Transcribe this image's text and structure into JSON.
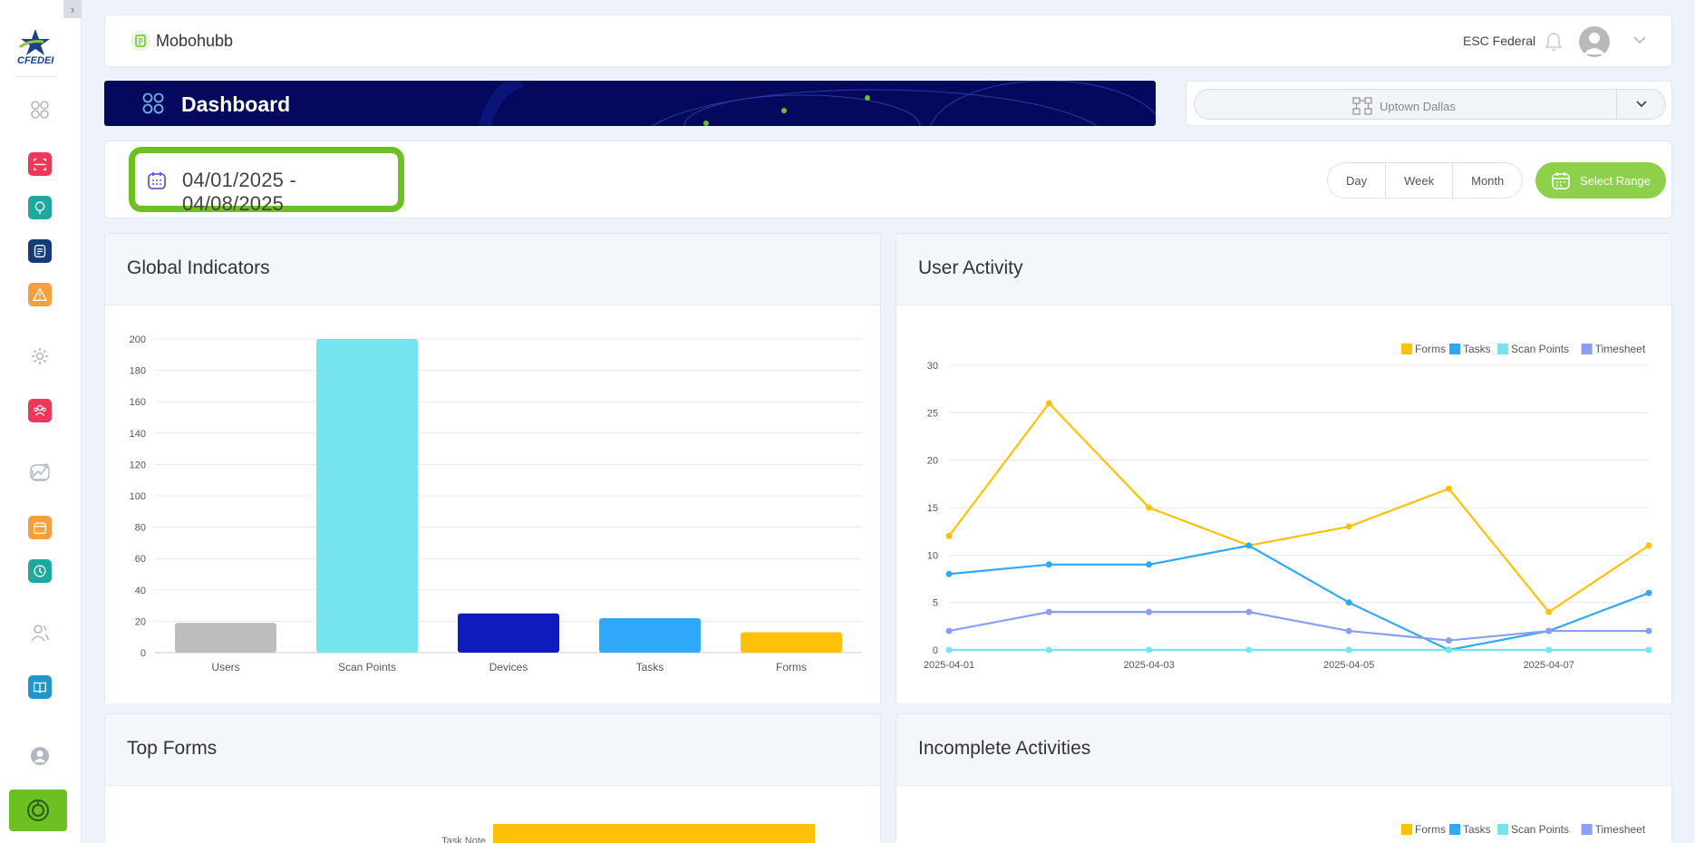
{
  "sidebar": {
    "collapse_glyph": "›",
    "logo_text": "CFEDEI",
    "items": [
      {
        "name": "dashboard-icon",
        "bg": "#ffffff",
        "color": "#b0b8c4"
      },
      {
        "name": "scan-icon",
        "bg": "#f0375a",
        "color": "#ffffff"
      },
      {
        "name": "location-pin-icon",
        "bg": "#1fa8a0",
        "color": "#ffffff"
      },
      {
        "name": "forms-icon",
        "bg": "#143c7a",
        "color": "#ffffff"
      },
      {
        "name": "alert-icon",
        "bg": "#f5a03c",
        "color": "#ffffff"
      },
      {
        "name": "gear-icon",
        "bg": "#ffffff",
        "color": "#b0b8c4"
      },
      {
        "name": "team-icon",
        "bg": "#f0375a",
        "color": "#ffffff"
      },
      {
        "name": "analytics-icon",
        "bg": "#ffffff",
        "color": "#b0b8c4"
      },
      {
        "name": "calendar-icon",
        "bg": "#f5a03c",
        "color": "#ffffff"
      },
      {
        "name": "clock-icon",
        "bg": "#1fa8a0",
        "color": "#ffffff"
      },
      {
        "name": "users-icon",
        "bg": "#ffffff",
        "color": "#b0b8c4"
      },
      {
        "name": "book-icon",
        "bg": "#2196c8",
        "color": "#ffffff"
      },
      {
        "name": "profile-icon",
        "bg": "#ffffff",
        "color": "#b0b8c4"
      }
    ],
    "bottom_icon": "support-icon"
  },
  "header": {
    "app_name": "Mobohubb",
    "org_name": "ESC Federal",
    "bell_icon": "bell-icon",
    "avatar_icon": "avatar-icon",
    "dropdown_icon": "chevron-down-icon"
  },
  "banner": {
    "title": "Dashboard",
    "icon": "dashboard-grid-icon"
  },
  "location": {
    "selected": "Uptown Dallas",
    "icon": "sitemap-icon"
  },
  "date_range": {
    "value": "04/01/2025 - 04/08/2025",
    "icon": "calendar-icon",
    "buttons": [
      "Day",
      "Week",
      "Month"
    ],
    "select_range_label": "Select Range"
  },
  "cards": {
    "global_indicators": "Global Indicators",
    "user_activity": "User Activity",
    "top_forms": "Top Forms",
    "incomplete_activities": "Incomplete Activities"
  },
  "top_forms_visible": {
    "bar_label": "Task Note",
    "bar_color": "#ffc107"
  },
  "chart_data": [
    {
      "type": "bar",
      "title": "Global Indicators",
      "categories": [
        "Users",
        "Scan Points",
        "Devices",
        "Tasks",
        "Forms"
      ],
      "values": [
        19,
        200,
        25,
        22,
        13
      ],
      "colors": [
        "#bdbdbd",
        "#76e4ec",
        "#0f1bbd",
        "#2fa8fa",
        "#ffc107"
      ],
      "ylim": [
        0,
        200
      ],
      "yticks": [
        0,
        20,
        40,
        60,
        80,
        100,
        120,
        140,
        160,
        180,
        200
      ],
      "grid": true
    },
    {
      "type": "line",
      "title": "User Activity",
      "x": [
        "2025-04-01",
        "2025-04-02",
        "2025-04-03",
        "2025-04-04",
        "2025-04-05",
        "2025-04-06",
        "2025-04-07",
        "2025-04-08"
      ],
      "xticks": [
        "2025-04-01",
        "2025-04-03",
        "2025-04-05",
        "2025-04-07"
      ],
      "ylim": [
        0,
        30
      ],
      "yticks": [
        0,
        5,
        10,
        15,
        20,
        25,
        30
      ],
      "legend_position": "top-right",
      "grid": true,
      "series": [
        {
          "name": "Forms",
          "color": "#ffc107",
          "values": [
            12,
            26,
            15,
            11,
            13,
            17,
            4,
            11
          ]
        },
        {
          "name": "Tasks",
          "color": "#2fa8fa",
          "values": [
            8,
            9,
            9,
            11,
            5,
            0,
            2,
            6
          ]
        },
        {
          "name": "Scan Points",
          "color": "#76e4ec",
          "values": [
            0,
            0,
            0,
            0,
            0,
            0,
            0,
            0
          ]
        },
        {
          "name": "Timesheet",
          "color": "#8b9df7",
          "values": [
            2,
            4,
            4,
            4,
            2,
            1,
            2,
            2
          ]
        }
      ]
    },
    {
      "type": "legend",
      "title": "Incomplete Activities",
      "series": [
        {
          "name": "Forms",
          "color": "#ffc107"
        },
        {
          "name": "Tasks",
          "color": "#2fa8fa"
        },
        {
          "name": "Scan Points",
          "color": "#76e4ec"
        },
        {
          "name": "Timesheet",
          "color": "#8b9df7"
        }
      ]
    }
  ]
}
